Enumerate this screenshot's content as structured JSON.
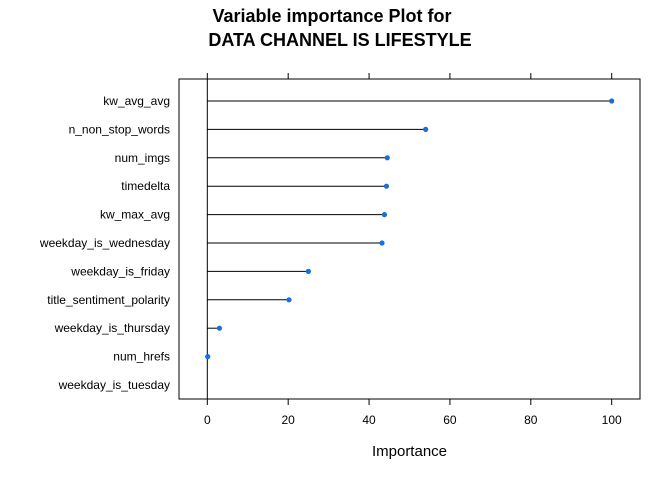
{
  "chart_data": {
    "type": "scatter",
    "title_line1": "Variable importance Plot for",
    "title_line2": "DATA CHANNEL IS LIFESTYLE",
    "xlabel": "Importance",
    "ylabel": "",
    "xlim": [
      -7,
      107
    ],
    "xticks": [
      0,
      20,
      40,
      60,
      80,
      100
    ],
    "grid": false,
    "legend": "none",
    "point_color": "#1a6fd8",
    "categories": [
      "kw_avg_avg",
      "n_non_stop_words",
      "num_imgs",
      "timedelta",
      "kw_max_avg",
      "weekday_is_wednesday",
      "weekday_is_friday",
      "title_sentiment_polarity",
      "weekday_is_thursday",
      "num_hrefs",
      "weekday_is_tuesday"
    ],
    "values": [
      100,
      54,
      44.5,
      44.3,
      43.8,
      43.2,
      25,
      20.2,
      3,
      0.1,
      null
    ]
  }
}
